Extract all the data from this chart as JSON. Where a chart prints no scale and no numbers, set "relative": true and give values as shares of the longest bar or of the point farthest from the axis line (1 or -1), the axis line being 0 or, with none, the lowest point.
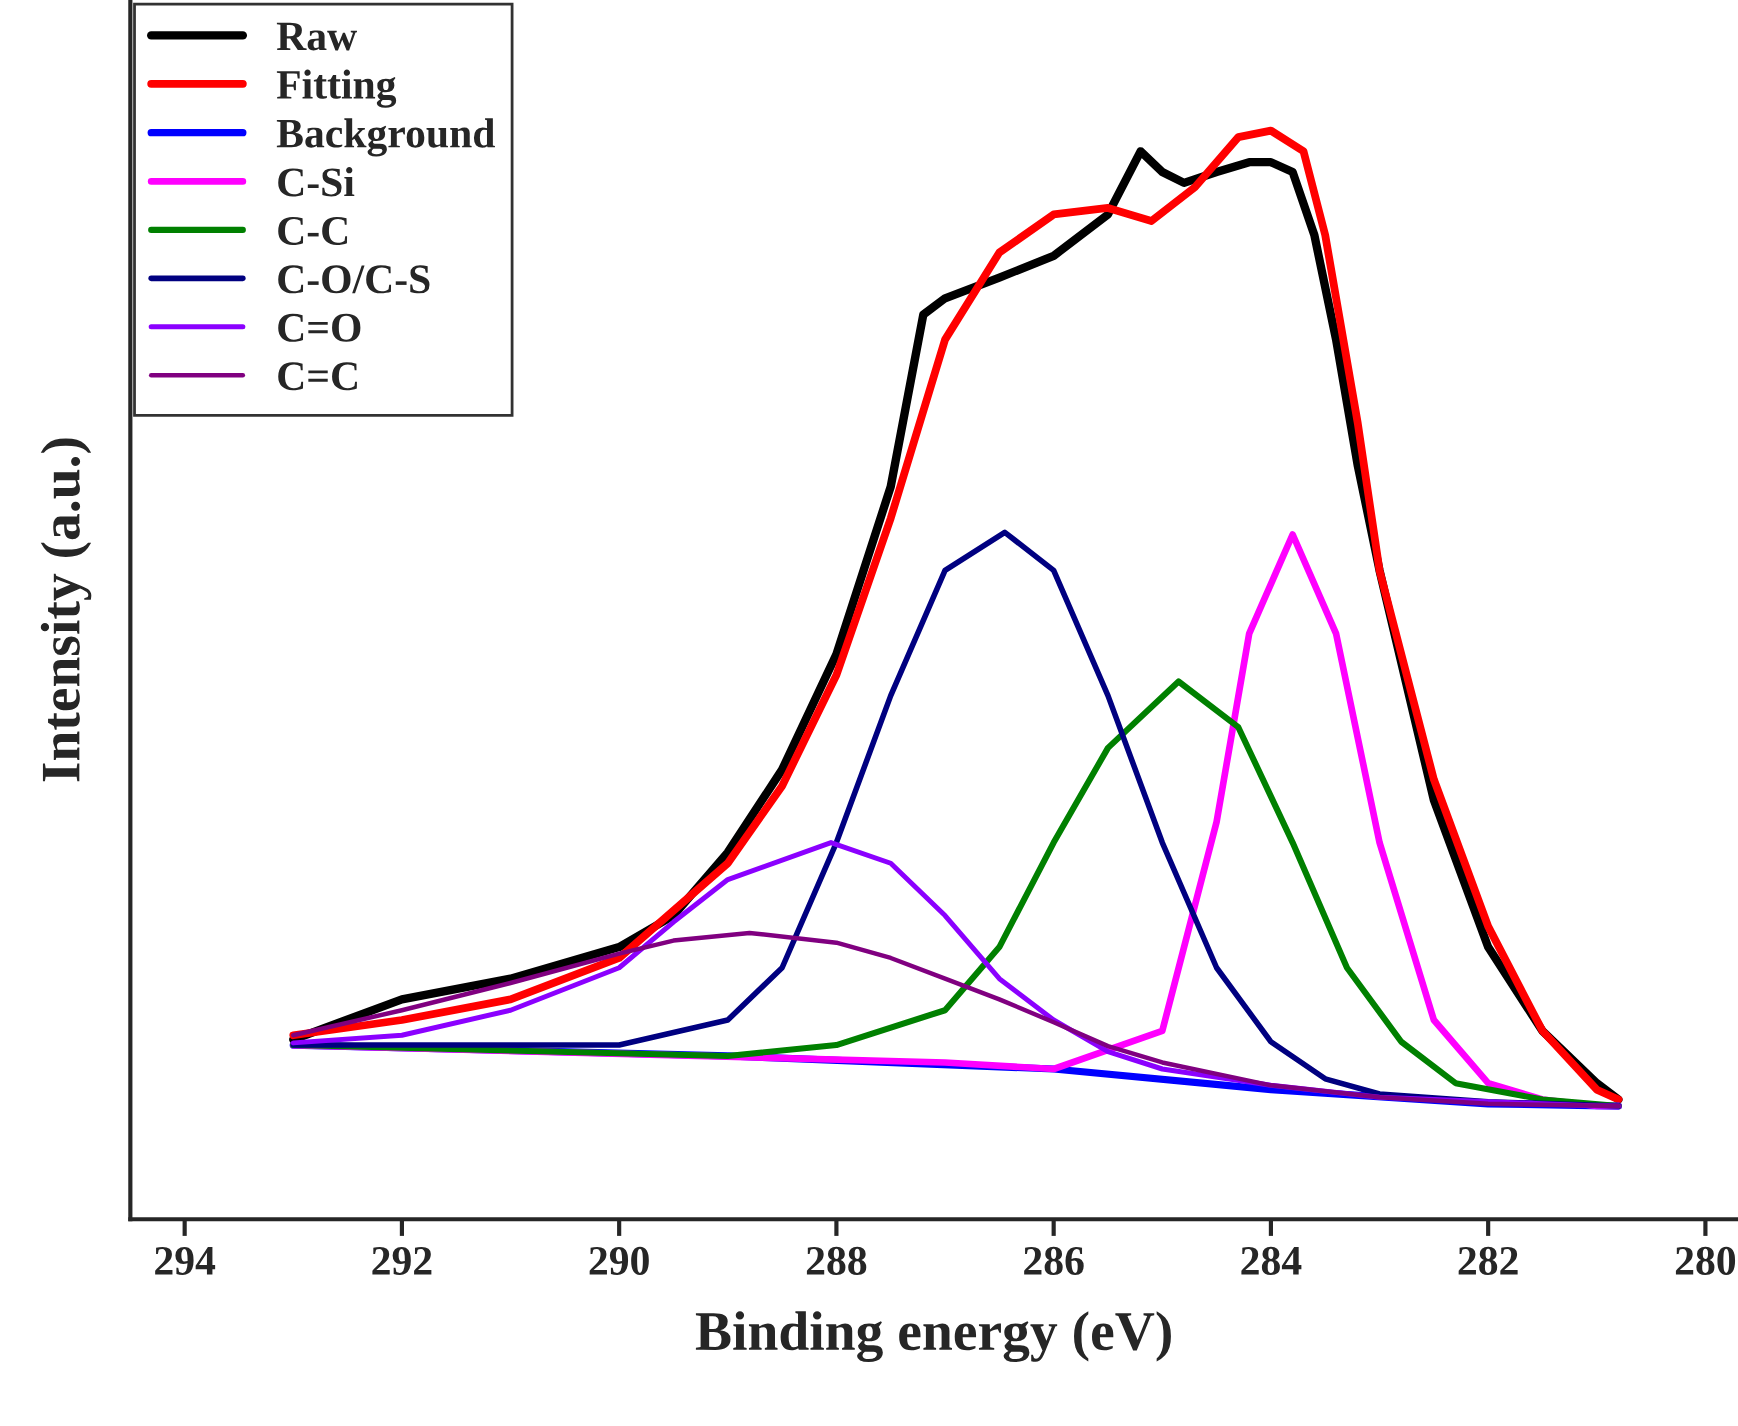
{
  "chart_data": {
    "type": "line",
    "relative": true,
    "xlabel": "Binding energy (eV)",
    "ylabel": "Intensity (a.u.)",
    "xlim": [
      294.5,
      279.7
    ],
    "xticks": [
      294,
      292,
      290,
      288,
      286,
      284,
      282,
      280
    ],
    "legend": "top left",
    "grid": false,
    "series": [
      {
        "name": "Raw",
        "color": "#000000",
        "x": [
          293,
          292,
          291,
          290,
          289.5,
          289,
          288.5,
          288,
          287.5,
          287.2,
          287,
          286.5,
          286,
          285.5,
          285.2,
          285,
          284.8,
          284.5,
          284.2,
          284,
          283.8,
          283.6,
          283.4,
          283.2,
          283,
          282.5,
          282,
          281.5,
          281,
          280.8
        ],
        "values": [
          0.165,
          0.202,
          0.221,
          0.25,
          0.279,
          0.337,
          0.413,
          0.519,
          0.673,
          0.831,
          0.846,
          0.865,
          0.885,
          0.923,
          0.981,
          0.962,
          0.952,
          0.962,
          0.971,
          0.971,
          0.962,
          0.904,
          0.808,
          0.692,
          0.596,
          0.385,
          0.25,
          0.173,
          0.125,
          0.11
        ]
      },
      {
        "name": "Fitting",
        "color": "#ff0000",
        "x": [
          293,
          292,
          291,
          290,
          289,
          288.5,
          288,
          287.5,
          287,
          286.5,
          286,
          285.5,
          285.1,
          284.7,
          284.3,
          284,
          283.7,
          283.5,
          283.2,
          283,
          282.5,
          282,
          281.5,
          281,
          280.8
        ],
        "values": [
          0.169,
          0.183,
          0.202,
          0.24,
          0.327,
          0.398,
          0.5,
          0.644,
          0.808,
          0.888,
          0.923,
          0.929,
          0.917,
          0.948,
          0.994,
          1.0,
          0.981,
          0.904,
          0.731,
          0.596,
          0.404,
          0.269,
          0.173,
          0.119,
          0.11
        ]
      },
      {
        "name": "Background",
        "color": "#0000ff",
        "x": [
          293,
          289,
          286,
          284,
          282,
          280.8
        ],
        "values": [
          0.16,
          0.15,
          0.138,
          0.119,
          0.106,
          0.104
        ]
      },
      {
        "name": "C-Si",
        "color": "#ff00ff",
        "x": [
          293,
          287,
          286,
          285,
          284.5,
          284.2,
          283.8,
          283.4,
          283,
          282.5,
          282,
          281.5,
          281,
          280.8
        ],
        "values": [
          0.16,
          0.144,
          0.138,
          0.173,
          0.365,
          0.538,
          0.629,
          0.538,
          0.346,
          0.183,
          0.125,
          0.11,
          0.104,
          0.104
        ]
      },
      {
        "name": "C-C",
        "color": "#008000",
        "x": [
          293,
          289,
          288,
          287,
          286.5,
          286,
          285.5,
          284.85,
          284.3,
          283.8,
          283.3,
          282.8,
          282.3,
          281.5,
          280.8
        ],
        "values": [
          0.16,
          0.15,
          0.16,
          0.192,
          0.25,
          0.346,
          0.433,
          0.494,
          0.452,
          0.346,
          0.231,
          0.163,
          0.125,
          0.11,
          0.104
        ]
      },
      {
        "name": "C-O/C-S",
        "color": "#000080",
        "x": [
          293,
          290,
          289,
          288.5,
          288,
          287.5,
          287,
          286.45,
          286,
          285.5,
          285,
          284.5,
          284,
          283.5,
          283,
          282,
          280.8
        ],
        "values": [
          0.16,
          0.16,
          0.183,
          0.231,
          0.346,
          0.481,
          0.596,
          0.631,
          0.596,
          0.481,
          0.346,
          0.231,
          0.163,
          0.129,
          0.115,
          0.108,
          0.104
        ]
      },
      {
        "name": "C=O",
        "color": "#8b00ff",
        "x": [
          293,
          292,
          291,
          290,
          289.5,
          289,
          288.05,
          287.5,
          287,
          286.5,
          286,
          285.5,
          285,
          284,
          283,
          281,
          280.8
        ],
        "values": [
          0.162,
          0.169,
          0.192,
          0.231,
          0.273,
          0.312,
          0.346,
          0.327,
          0.279,
          0.221,
          0.183,
          0.154,
          0.138,
          0.123,
          0.112,
          0.104,
          0.104
        ]
      },
      {
        "name": "C=C",
        "color": "#800080",
        "x": [
          293,
          292,
          291,
          290,
          289.5,
          288.8,
          288,
          287.5,
          287,
          286.5,
          286,
          285.5,
          285,
          284,
          283,
          282,
          280.8
        ],
        "values": [
          0.169,
          0.192,
          0.217,
          0.244,
          0.256,
          0.263,
          0.254,
          0.24,
          0.221,
          0.202,
          0.181,
          0.159,
          0.144,
          0.123,
          0.112,
          0.106,
          0.104
        ]
      }
    ]
  }
}
